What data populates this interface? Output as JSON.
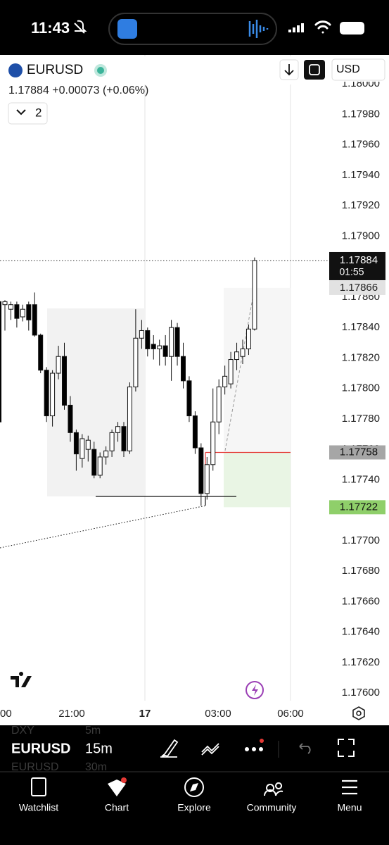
{
  "status_bar": {
    "time": "11:43"
  },
  "header": {
    "symbol": "EURUSD",
    "quote": {
      "price": "1.17884",
      "change": "+0.00073",
      "change_pct": "(+0.06%)"
    },
    "indicator_count": "2",
    "currency": "USD"
  },
  "chart_data": {
    "type": "candlestick",
    "open": [
      1.17857,
      1.17855,
      1.17852,
      1.17855,
      1.17847,
      1.17855,
      1.17855,
      1.17835,
      1.17812,
      1.17782,
      1.1781,
      1.17821,
      1.17789,
      1.17771,
      1.17754,
      1.1776,
      1.1776,
      1.17743,
      1.17755,
      1.17759,
      1.17771,
      1.17775,
      1.17759,
      1.17801,
      1.17833,
      1.17838,
      1.17829,
      1.17826,
      1.17828,
      1.17821,
      1.1784,
      1.17821,
      1.17805,
      1.17782,
      1.17761,
      1.17731,
      1.1775,
      1.17778,
      1.17801,
      1.17803,
      1.17819,
      1.17821,
      1.17826,
      1.17839
    ],
    "high": [
      1.1786,
      1.17858,
      1.17857,
      1.17857,
      1.17855,
      1.17857,
      1.17863,
      1.17836,
      1.17814,
      1.17812,
      1.17828,
      1.1783,
      1.17795,
      1.17773,
      1.1777,
      1.17769,
      1.17765,
      1.17758,
      1.17762,
      1.17773,
      1.17778,
      1.17778,
      1.17804,
      1.17852,
      1.17845,
      1.1784,
      1.17835,
      1.17832,
      1.17835,
      1.17845,
      1.17843,
      1.1783,
      1.17808,
      1.17785,
      1.17764,
      1.17755,
      1.178,
      1.17806,
      1.17815,
      1.17824,
      1.1783,
      1.17832,
      1.17842,
      1.17886
    ],
    "low": [
      1.17775,
      1.17838,
      1.17845,
      1.1784,
      1.17844,
      1.17838,
      1.17834,
      1.1781,
      1.17778,
      1.17775,
      1.17806,
      1.17786,
      1.17765,
      1.17746,
      1.17748,
      1.17752,
      1.17741,
      1.17741,
      1.1775,
      1.17755,
      1.17765,
      1.17755,
      1.17757,
      1.17798,
      1.17826,
      1.17821,
      1.17819,
      1.17815,
      1.17815,
      1.17805,
      1.17815,
      1.178,
      1.17778,
      1.17757,
      1.17723,
      1.17727,
      1.17746,
      1.1777,
      1.17796,
      1.178,
      1.17812,
      1.17816,
      1.17822,
      1.17838
    ],
    "close": [
      1.17778,
      1.17857,
      1.17855,
      1.17846,
      1.17852,
      1.17845,
      1.17835,
      1.17812,
      1.17782,
      1.1781,
      1.17821,
      1.17789,
      1.17771,
      1.17757,
      1.17767,
      1.17766,
      1.17743,
      1.17755,
      1.17759,
      1.17771,
      1.17775,
      1.17759,
      1.17801,
      1.17833,
      1.17838,
      1.17826,
      1.17826,
      1.17828,
      1.17821,
      1.1784,
      1.17821,
      1.17805,
      1.17782,
      1.17761,
      1.17731,
      1.1775,
      1.17778,
      1.17801,
      1.17808,
      1.17819,
      1.17824,
      1.17826,
      1.17839,
      1.17884
    ],
    "up_color": "#ffffff",
    "down_color": "#000000",
    "ylim": [
      1.17595,
      1.18019
    ],
    "yticks": [
      {
        "value": 1.176,
        "label": "1.17600"
      },
      {
        "value": 1.1762,
        "label": "1.17620"
      },
      {
        "value": 1.1764,
        "label": "1.17640"
      },
      {
        "value": 1.1766,
        "label": "1.17660"
      },
      {
        "value": 1.1768,
        "label": "1.17680"
      },
      {
        "value": 1.177,
        "label": "1.17700"
      },
      {
        "value": 1.1772,
        "label": "1.17720"
      },
      {
        "value": 1.1774,
        "label": "1.17740"
      },
      {
        "value": 1.1776,
        "label": "1.17760"
      },
      {
        "value": 1.1778,
        "label": "1.17780"
      },
      {
        "value": 1.178,
        "label": "1.17800"
      },
      {
        "value": 1.1782,
        "label": "1.17820"
      },
      {
        "value": 1.1784,
        "label": "1.17840"
      },
      {
        "value": 1.1786,
        "label": "1.17860"
      },
      {
        "value": 1.1788,
        "label": "1.17880"
      },
      {
        "value": 1.179,
        "label": "1.17900"
      },
      {
        "value": 1.1792,
        "label": "1.17920"
      },
      {
        "value": 1.1794,
        "label": "1.17940"
      },
      {
        "value": 1.1796,
        "label": "1.17960"
      },
      {
        "value": 1.1798,
        "label": "1.17980"
      },
      {
        "value": 1.18,
        "label": "1.18000"
      }
    ],
    "xtick_labels": [
      "00",
      "21:00",
      "17",
      "03:00",
      "06:00"
    ],
    "price_labels": [
      1.17884,
      1.17866,
      1.17758,
      1.17722
    ],
    "countdown": "01:55"
  },
  "toolbar": {
    "symbol": "EURUSD",
    "interval": "15m",
    "faded": [
      "DXY",
      "5m",
      "EURUSD",
      "30m"
    ]
  },
  "tabs": [
    "Watchlist",
    "Chart",
    "Explore",
    "Community",
    "Menu"
  ]
}
